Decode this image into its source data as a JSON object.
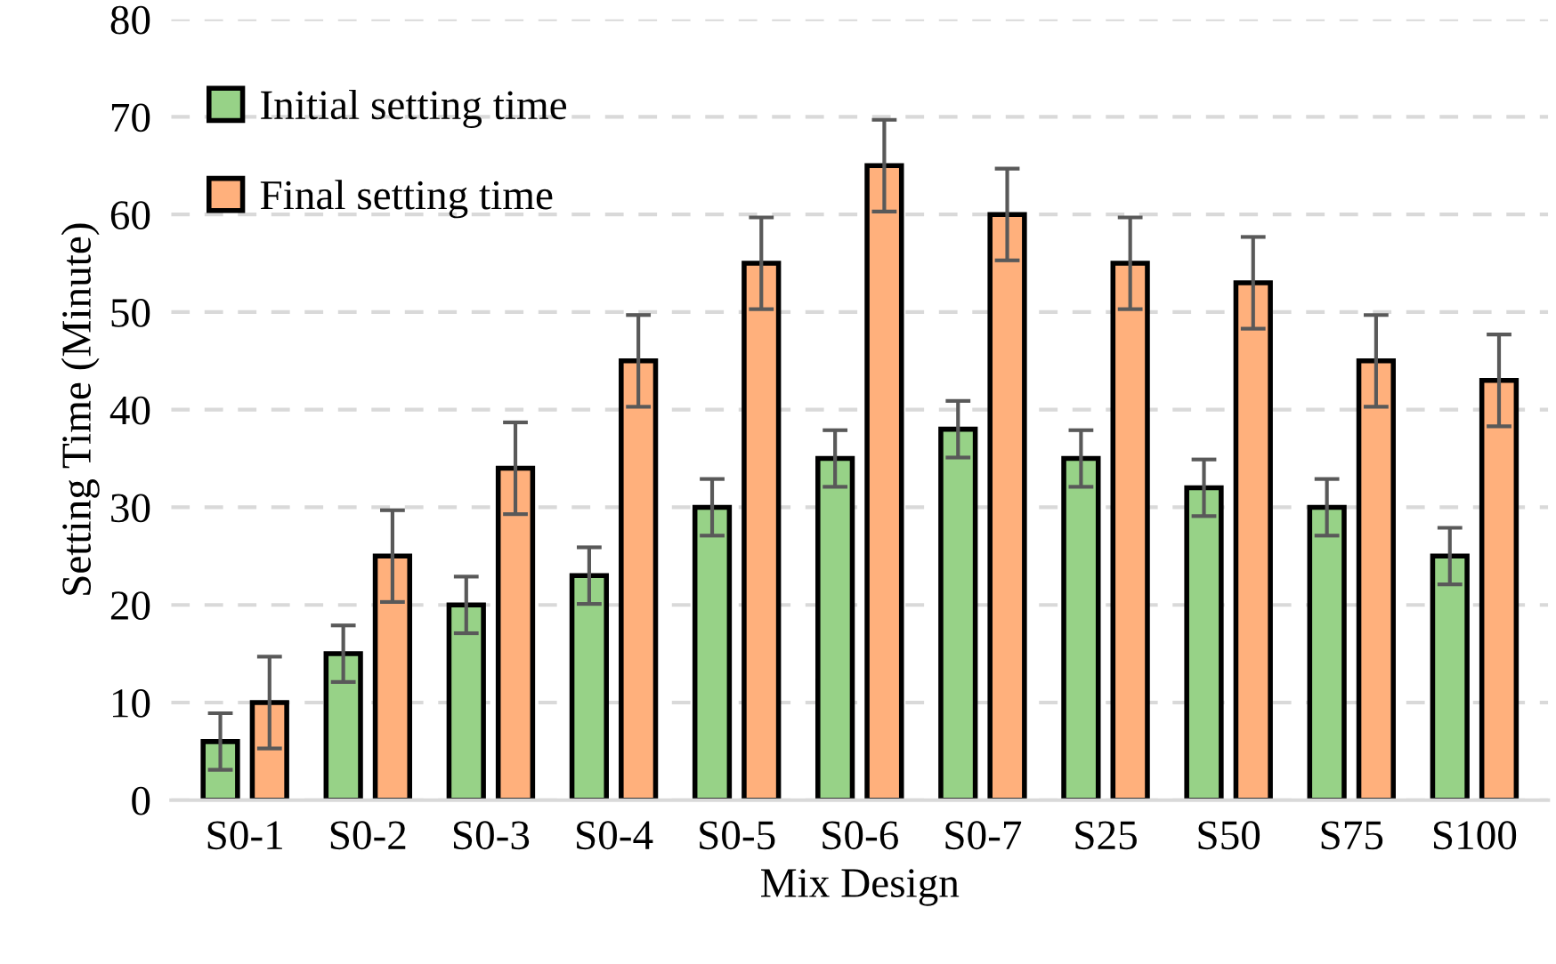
{
  "chart_data": {
    "type": "bar",
    "xlabel": "Mix Design",
    "ylabel": "Setting Time (Minute)",
    "categories": [
      "S0-1",
      "S0-2",
      "S0-3",
      "S0-4",
      "S0-5",
      "S0-6",
      "S0-7",
      "S25",
      "S50",
      "S75",
      "S100"
    ],
    "series": [
      {
        "name": "Initial setting time",
        "color": "#97d287",
        "values": [
          6,
          15,
          20,
          23,
          30,
          35,
          38,
          35,
          32,
          30,
          25
        ],
        "errors": [
          2.9,
          2.9,
          2.9,
          2.9,
          2.9,
          2.9,
          2.9,
          2.9,
          2.9,
          2.9,
          2.9
        ]
      },
      {
        "name": "Final setting time",
        "color": "#ffb07c",
        "values": [
          10,
          25,
          34,
          45,
          55,
          65,
          60,
          55,
          53,
          45,
          43
        ],
        "errors": [
          4.7,
          4.7,
          4.7,
          4.7,
          4.7,
          4.7,
          4.7,
          4.7,
          4.7,
          4.7,
          4.7
        ]
      }
    ],
    "ylim": [
      0,
      80
    ],
    "yticks": [
      0,
      10,
      20,
      30,
      40,
      50,
      60,
      70,
      80
    ],
    "grid": "y",
    "legend": "top left"
  }
}
